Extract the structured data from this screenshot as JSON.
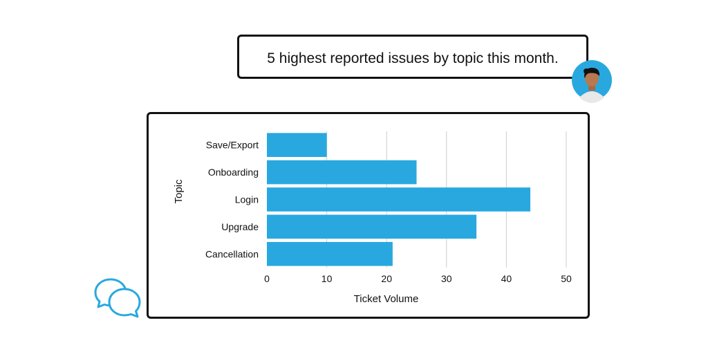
{
  "prompt": {
    "text": "5 highest reported issues by topic this month."
  },
  "icons": {
    "avatar": "user-avatar",
    "chat": "chat-bubbles-icon"
  },
  "colors": {
    "bar": "#29a8e0",
    "accent": "#29a8e0",
    "border": "#111111",
    "grid": "#cccccc"
  },
  "chart_data": {
    "type": "bar",
    "orientation": "horizontal",
    "categories": [
      "Save/Export",
      "Onboarding",
      "Login",
      "Upgrade",
      "Cancellation"
    ],
    "values": [
      10,
      25,
      44,
      35,
      21
    ],
    "xlabel": "Ticket Volume",
    "ylabel": "Topic",
    "xlim": [
      0,
      50
    ],
    "xticks": [
      "0",
      "10",
      "20",
      "30",
      "40",
      "50"
    ],
    "grid": true
  }
}
